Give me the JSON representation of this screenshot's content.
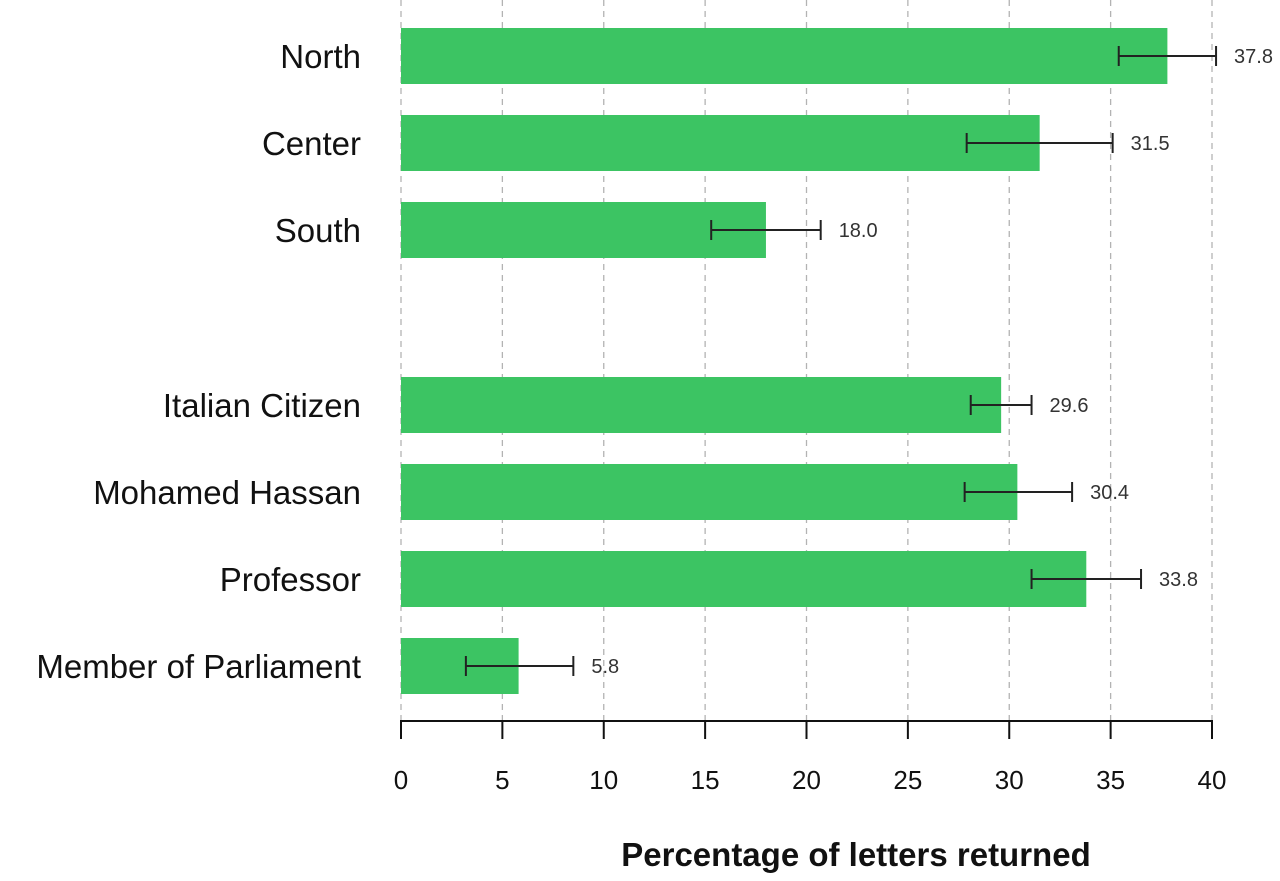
{
  "chart_data": {
    "type": "bar",
    "orientation": "horizontal",
    "categories": [
      "North",
      "Center",
      "South",
      "Italian Citizen",
      "Mohamed Hassan",
      "Professor",
      "Member of Parliament"
    ],
    "groups": [
      [
        "North",
        "Center",
        "South"
      ],
      [
        "Italian Citizen",
        "Mohamed Hassan",
        "Professor",
        "Member of Parliament"
      ]
    ],
    "values": [
      37.8,
      31.5,
      18.0,
      29.6,
      30.4,
      33.8,
      5.8
    ],
    "value_labels": [
      "37.8",
      "31.5",
      "18.0",
      "29.6",
      "30.4",
      "33.8",
      "5.8"
    ],
    "error_low": [
      35.4,
      27.9,
      15.3,
      28.1,
      27.8,
      31.1,
      3.2
    ],
    "error_high": [
      40.2,
      35.1,
      20.7,
      31.1,
      33.1,
      36.5,
      8.5
    ],
    "xlabel": "Percentage of letters returned",
    "ylabel": "",
    "xlim": [
      0,
      40
    ],
    "xticks": [
      0,
      5,
      10,
      15,
      20,
      25,
      30,
      35,
      40
    ],
    "xtick_labels": [
      "0",
      "5",
      "10",
      "15",
      "20",
      "25",
      "30",
      "35",
      "40"
    ],
    "grid": true,
    "colors": {
      "bar": "#3cc463",
      "error_bar": "#222222",
      "grid": "#b3b3b3"
    }
  }
}
